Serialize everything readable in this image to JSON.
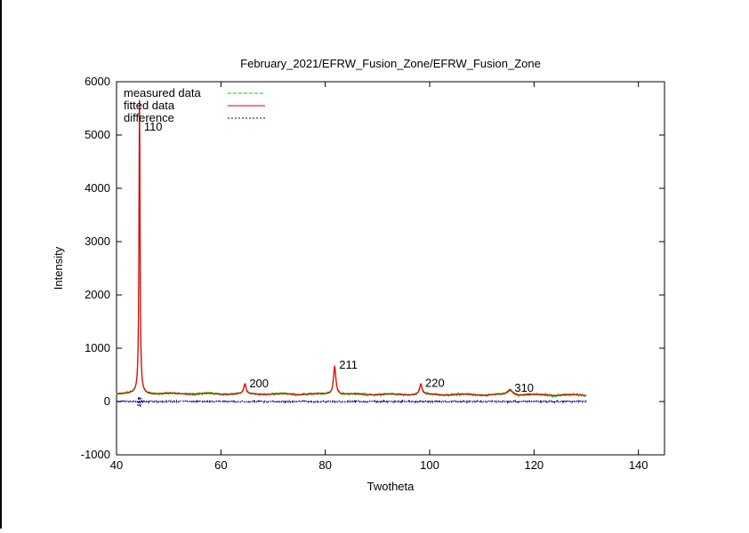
{
  "chart_data": {
    "type": "line",
    "title": "February_2021/EFRW_Fusion_Zone/EFRW_Fusion_Zone",
    "xlabel": "Twotheta",
    "ylabel": "Intensity",
    "xlim": [
      40,
      145
    ],
    "ylim": [
      -1000,
      6000
    ],
    "x_ticks": [
      40,
      60,
      80,
      100,
      120,
      140
    ],
    "y_ticks": [
      -1000,
      0,
      1000,
      2000,
      3000,
      4000,
      5000,
      6000
    ],
    "grid": false,
    "legend_position": "top-left",
    "background_level": 150,
    "x_range": [
      40,
      130
    ],
    "series": [
      {
        "name": "measured data",
        "color": "#00cc00",
        "dash": "dashed"
      },
      {
        "name": "fitted data",
        "color": "#dd0000",
        "dash": "solid"
      },
      {
        "name": "difference",
        "color": "#000088",
        "dash": "dotted"
      }
    ],
    "peaks": [
      {
        "label": "110",
        "x": 44.4,
        "y": 5650
      },
      {
        "label": "200",
        "x": 64.6,
        "y": 330
      },
      {
        "label": "211",
        "x": 81.8,
        "y": 680
      },
      {
        "label": "220",
        "x": 98.3,
        "y": 340
      },
      {
        "label": "310",
        "x": 115.4,
        "y": 250
      }
    ]
  }
}
